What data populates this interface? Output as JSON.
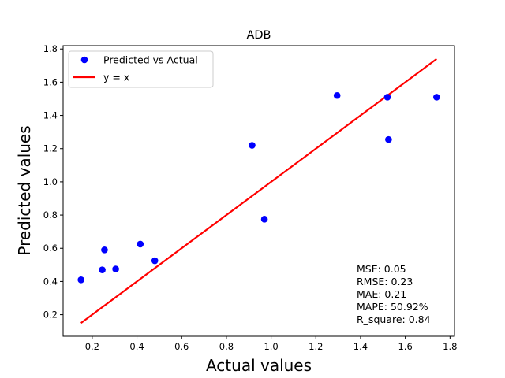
{
  "chart_data": {
    "type": "scatter",
    "title": "ADB",
    "xlabel": "Actual values",
    "ylabel": "Predicted values",
    "xlim": [
      0.07,
      1.82
    ],
    "ylim": [
      0.07,
      1.82
    ],
    "xticks": [
      0.2,
      0.4,
      0.6,
      0.8,
      1.0,
      1.2,
      1.4,
      1.6,
      1.8
    ],
    "yticks": [
      0.2,
      0.4,
      0.6,
      0.8,
      1.0,
      1.2,
      1.4,
      1.6,
      1.8
    ],
    "grid": false,
    "legend_position": "top-left",
    "series": [
      {
        "name": "Predicted vs Actual",
        "kind": "scatter",
        "color": "#0000ff",
        "points": [
          {
            "x": 0.15,
            "y": 0.41
          },
          {
            "x": 0.245,
            "y": 0.47
          },
          {
            "x": 0.255,
            "y": 0.59
          },
          {
            "x": 0.305,
            "y": 0.475
          },
          {
            "x": 0.415,
            "y": 0.625
          },
          {
            "x": 0.48,
            "y": 0.525
          },
          {
            "x": 0.915,
            "y": 1.22
          },
          {
            "x": 0.97,
            "y": 0.775
          },
          {
            "x": 1.295,
            "y": 1.52
          },
          {
            "x": 1.52,
            "y": 1.51
          },
          {
            "x": 1.525,
            "y": 1.255
          },
          {
            "x": 1.74,
            "y": 1.51
          }
        ]
      },
      {
        "name": "y = x",
        "kind": "line",
        "color": "#ff0000",
        "points": [
          {
            "x": 0.15,
            "y": 0.15
          },
          {
            "x": 1.74,
            "y": 1.74
          }
        ]
      }
    ],
    "annotation": [
      "MSE: 0.05",
      "RMSE: 0.23",
      "MAE: 0.21",
      "MAPE: 50.92%",
      "R_square: 0.84"
    ]
  }
}
